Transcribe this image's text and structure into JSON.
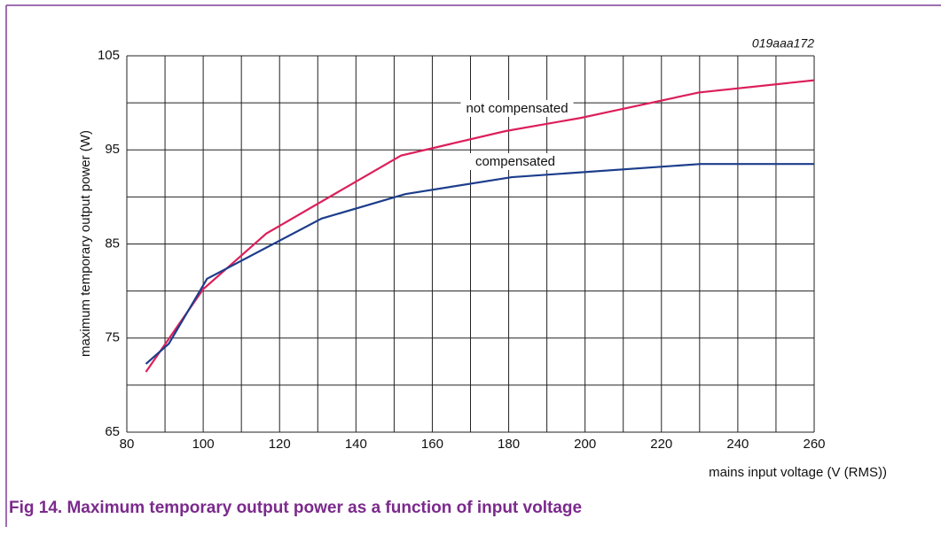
{
  "chart_data": {
    "type": "line",
    "subtitle": "019aaa172",
    "caption": "Fig 14.   Maximum temporary output power as a function of input voltage",
    "xlabel": "mains input voltage (V (RMS))",
    "ylabel": "maximum temporary output power (W)",
    "xlim": [
      80,
      260
    ],
    "xticks": [
      80,
      100,
      120,
      140,
      160,
      180,
      200,
      220,
      240,
      260
    ],
    "xminor": [
      90,
      110,
      130,
      150,
      170,
      190,
      210,
      230,
      250
    ],
    "ylim": [
      65,
      105
    ],
    "yticks": [
      65,
      75,
      85,
      95,
      105
    ],
    "yminor": [
      70,
      80,
      90,
      100
    ],
    "grid": true,
    "series": [
      {
        "name": "not compensated",
        "color": "#dc1f5a",
        "x": [
          85,
          100,
          116.5,
          151.8,
          179.2,
          198.9,
          229.8,
          260
        ],
        "values": [
          71.4,
          80.2,
          86.1,
          94.4,
          97,
          98.4,
          101.1,
          102.4
        ]
      },
      {
        "name": "compensated",
        "color": "#1d3d8c",
        "x": [
          85,
          91,
          101,
          131,
          152.9,
          180.8,
          230.3,
          260
        ],
        "values": [
          72.25,
          74.4,
          81.3,
          87.7,
          90.3,
          92.1,
          93.5,
          93.5
        ]
      }
    ]
  }
}
